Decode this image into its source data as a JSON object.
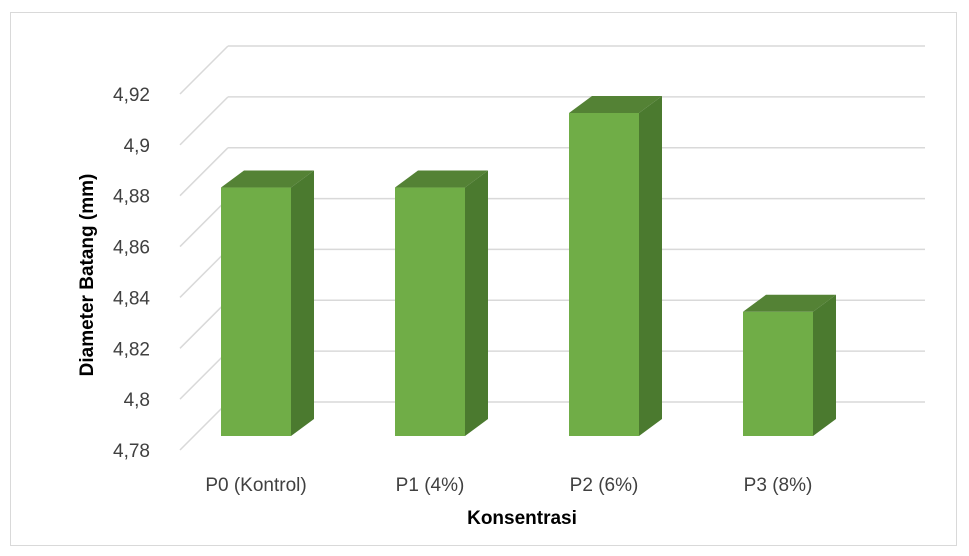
{
  "chart_data": {
    "type": "bar",
    "style": "3d-column",
    "title": "",
    "xlabel": "Konsentrasi",
    "ylabel": "Diameter Batang (mm)",
    "categories": [
      "P0 (Kontrol)",
      "P1 (4%)",
      "P2 (6%)",
      "P3 (8%)"
    ],
    "values": [
      4.88,
      4.88,
      4.91,
      4.83
    ],
    "ylim": [
      4.78,
      4.93
    ],
    "yticks": [
      "4,78",
      "4,8",
      "4,82",
      "4,84",
      "4,86",
      "4,88",
      "4,9",
      "4,92"
    ],
    "ytick_values": [
      4.78,
      4.8,
      4.82,
      4.84,
      4.86,
      4.88,
      4.9,
      4.92
    ],
    "grid": true,
    "legend": "none",
    "colors": {
      "bar_front": "#70ad47",
      "bar_top": "#548235",
      "bar_side": "#4b7a2f",
      "grid": "#d9d9d9"
    }
  }
}
